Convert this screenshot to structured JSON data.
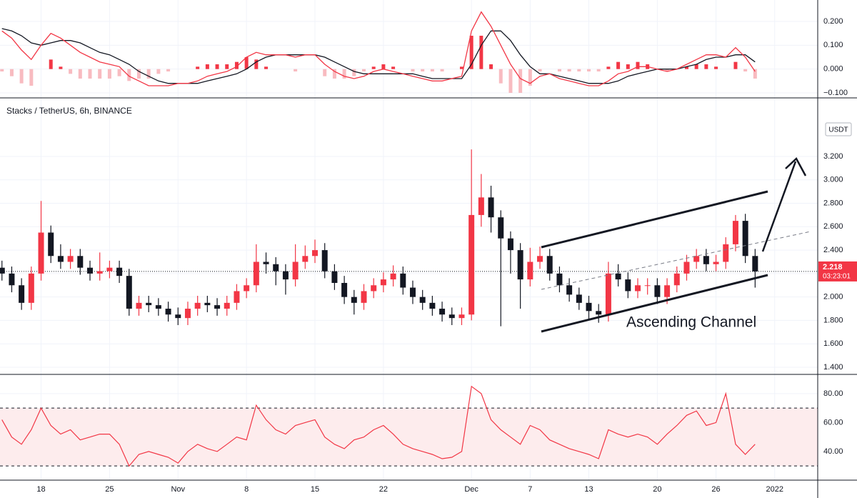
{
  "chart_data": [
    {
      "type": "macd",
      "ylim": [
        -0.121,
        0.29
      ],
      "yticks": [
        {
          "value": 0.2,
          "label": "0.200"
        },
        {
          "value": 0.1,
          "label": "0.100"
        },
        {
          "value": 0,
          "label": "0.000"
        },
        {
          "value": -0.1,
          "label": "−0.100"
        }
      ],
      "macd": {
        "color": "#f23645",
        "values": [
          0.16,
          0.13,
          0.08,
          0.04,
          0.1,
          0.15,
          0.13,
          0.1,
          0.07,
          0.05,
          0.03,
          0.02,
          0.01,
          -0.03,
          -0.05,
          -0.07,
          -0.07,
          -0.07,
          -0.06,
          -0.06,
          -0.05,
          -0.03,
          -0.02,
          -0.01,
          0.01,
          0.05,
          0.07,
          0.06,
          0.06,
          0.06,
          0.05,
          0.06,
          0.06,
          0.02,
          -0.01,
          -0.03,
          -0.04,
          -0.03,
          -0.01,
          0.0,
          -0.01,
          -0.02,
          -0.03,
          -0.04,
          -0.05,
          -0.05,
          -0.04,
          -0.03,
          0.16,
          0.24,
          0.18,
          0.1,
          0.02,
          -0.04,
          -0.06,
          -0.03,
          -0.02,
          -0.04,
          -0.05,
          -0.06,
          -0.07,
          -0.07,
          -0.05,
          -0.02,
          -0.01,
          0.01,
          0.01,
          0.0,
          -0.01,
          0.0,
          0.02,
          0.04,
          0.06,
          0.06,
          0.05,
          0.09,
          0.05,
          -0.01
        ]
      },
      "signal": {
        "color": "#131722",
        "values": [
          0.17,
          0.16,
          0.14,
          0.11,
          0.1,
          0.11,
          0.12,
          0.12,
          0.11,
          0.09,
          0.07,
          0.06,
          0.04,
          0.02,
          -0.01,
          -0.03,
          -0.05,
          -0.06,
          -0.06,
          -0.06,
          -0.06,
          -0.05,
          -0.04,
          -0.03,
          -0.02,
          0.0,
          0.03,
          0.05,
          0.06,
          0.06,
          0.06,
          0.06,
          0.06,
          0.05,
          0.03,
          0.01,
          -0.01,
          -0.02,
          -0.02,
          -0.02,
          -0.02,
          -0.02,
          -0.02,
          -0.03,
          -0.04,
          -0.04,
          -0.04,
          -0.04,
          0.02,
          0.1,
          0.16,
          0.16,
          0.12,
          0.06,
          0.01,
          -0.02,
          -0.02,
          -0.03,
          -0.04,
          -0.05,
          -0.06,
          -0.06,
          -0.06,
          -0.05,
          -0.03,
          -0.02,
          -0.01,
          0.0,
          0.0,
          0.0,
          0.01,
          0.02,
          0.04,
          0.05,
          0.05,
          0.06,
          0.06,
          0.03
        ]
      },
      "histogram": {
        "colors": [
          "#f23645",
          "#f8bbc0"
        ],
        "values": [
          -0.01,
          -0.03,
          -0.06,
          -0.07,
          0.0,
          0.04,
          0.01,
          -0.02,
          -0.04,
          -0.04,
          -0.04,
          -0.04,
          -0.03,
          -0.05,
          -0.04,
          -0.04,
          -0.02,
          -0.01,
          0.0,
          0.0,
          0.01,
          0.02,
          0.02,
          0.02,
          0.03,
          0.05,
          0.04,
          0.01,
          0.0,
          0.0,
          -0.01,
          0.0,
          0.0,
          -0.03,
          -0.04,
          -0.04,
          -0.03,
          -0.01,
          0.01,
          0.02,
          0.01,
          0.0,
          -0.01,
          -0.01,
          -0.01,
          -0.01,
          0.0,
          0.01,
          0.14,
          0.14,
          0.02,
          -0.06,
          -0.1,
          -0.1,
          -0.07,
          -0.01,
          0.0,
          -0.01,
          -0.01,
          -0.01,
          -0.01,
          -0.01,
          0.01,
          0.03,
          0.02,
          0.03,
          0.02,
          0.0,
          -0.01,
          0.0,
          0.01,
          0.02,
          0.02,
          0.01,
          0.0,
          0.03,
          -0.01,
          -0.04
        ]
      }
    },
    {
      "type": "candlestick",
      "title": "Stacks / TetherUS, 6h, BINANCE",
      "unit": "USDT",
      "annotation": "Ascending Channel",
      "last_price": 2.218,
      "countdown": "03:23:01",
      "up_color": "#f23645",
      "down_color": "#131722",
      "ylim": [
        1.339,
        3.7
      ],
      "yticks": [
        {
          "value": 1.4,
          "label": "1.400"
        },
        {
          "value": 1.6,
          "label": "1.600"
        },
        {
          "value": 1.8,
          "label": "1.800"
        },
        {
          "value": 2.0,
          "label": "2.000"
        },
        {
          "value": 2.2,
          "label": "2.200"
        },
        {
          "value": 2.4,
          "label": "2.400"
        },
        {
          "value": 2.6,
          "label": "2.600"
        },
        {
          "value": 2.8,
          "label": "2.800"
        },
        {
          "value": 3.0,
          "label": "3.000"
        },
        {
          "value": 3.2,
          "label": "3.200"
        }
      ],
      "xlim": [
        -0.2,
        83.4
      ],
      "xticks": [
        {
          "value": 4,
          "label": "18"
        },
        {
          "value": 11,
          "label": "25"
        },
        {
          "value": 18,
          "label": "Nov"
        },
        {
          "value": 25,
          "label": "8"
        },
        {
          "value": 32,
          "label": "15"
        },
        {
          "value": 39,
          "label": "22"
        },
        {
          "value": 48,
          "label": "Dec"
        },
        {
          "value": 54,
          "label": "7"
        },
        {
          "value": 60,
          "label": "13"
        },
        {
          "value": 67,
          "label": "20"
        },
        {
          "value": 73,
          "label": "26"
        },
        {
          "value": 79,
          "label": "2022"
        }
      ],
      "open": [
        2.25,
        2.2,
        2.1,
        1.95,
        2.2,
        2.55,
        2.35,
        2.3,
        2.35,
        2.25,
        2.2,
        2.22,
        2.25,
        2.18,
        1.9,
        1.95,
        1.93,
        1.9,
        1.85,
        1.82,
        1.9,
        1.95,
        1.93,
        1.9,
        1.95,
        2.05,
        2.1,
        2.3,
        2.28,
        2.22,
        2.15,
        2.3,
        2.35,
        2.4,
        2.22,
        2.12,
        2.0,
        1.95,
        2.05,
        2.1,
        2.15,
        2.2,
        2.08,
        2.0,
        1.95,
        1.9,
        1.85,
        1.82,
        1.85,
        2.7,
        2.85,
        2.68,
        2.5,
        2.4,
        2.15,
        2.3,
        2.35,
        2.2,
        2.1,
        2.02,
        1.95,
        1.88,
        1.85,
        2.2,
        2.15,
        2.05,
        2.1,
        2.1,
        2.0,
        2.1,
        2.2,
        2.3,
        2.35,
        2.28,
        2.3,
        2.45,
        2.65,
        2.35
      ],
      "high": [
        2.31,
        2.26,
        2.16,
        2.26,
        2.82,
        2.61,
        2.45,
        2.41,
        2.41,
        2.31,
        2.38,
        2.31,
        2.31,
        2.24,
        2.01,
        2.01,
        1.99,
        1.96,
        1.91,
        1.96,
        2.01,
        2.01,
        1.99,
        2.01,
        2.11,
        2.16,
        2.45,
        2.38,
        2.34,
        2.28,
        2.45,
        2.44,
        2.49,
        2.46,
        2.28,
        2.18,
        2.06,
        2.11,
        2.16,
        2.21,
        2.27,
        2.26,
        2.14,
        2.06,
        2.01,
        1.96,
        1.91,
        1.91,
        3.26,
        3.05,
        2.95,
        2.74,
        2.56,
        2.46,
        2.42,
        2.43,
        2.41,
        2.26,
        2.16,
        2.08,
        2.01,
        1.94,
        2.3,
        2.28,
        2.21,
        2.16,
        2.16,
        2.16,
        2.16,
        2.26,
        2.36,
        2.41,
        2.41,
        2.36,
        2.51,
        2.7,
        2.71,
        2.41
      ],
      "low": [
        2.14,
        2.04,
        1.89,
        1.89,
        2.14,
        2.29,
        2.24,
        2.24,
        2.19,
        2.14,
        2.14,
        2.16,
        2.12,
        1.84,
        1.84,
        1.87,
        1.84,
        1.79,
        1.76,
        1.76,
        1.84,
        1.87,
        1.84,
        1.84,
        1.89,
        1.99,
        2.04,
        2.2,
        2.1,
        2.02,
        2.09,
        2.24,
        2.29,
        2.16,
        2.06,
        1.94,
        1.85,
        1.89,
        1.99,
        2.04,
        2.09,
        2.02,
        1.94,
        1.89,
        1.84,
        1.79,
        1.76,
        1.76,
        1.8,
        2.6,
        2.55,
        1.75,
        2.2,
        1.9,
        2.09,
        2.24,
        2.14,
        2.04,
        1.96,
        1.89,
        1.8,
        1.78,
        1.79,
        2.09,
        1.99,
        1.99,
        2.02,
        1.94,
        1.94,
        2.04,
        2.14,
        2.24,
        2.22,
        2.22,
        2.24,
        2.39,
        2.29,
        2.08
      ],
      "close": [
        2.2,
        2.1,
        1.95,
        2.2,
        2.55,
        2.35,
        2.3,
        2.35,
        2.25,
        2.2,
        2.22,
        2.25,
        2.18,
        1.9,
        1.95,
        1.93,
        1.9,
        1.85,
        1.82,
        1.9,
        1.95,
        1.93,
        1.9,
        1.95,
        2.05,
        2.1,
        2.3,
        2.28,
        2.22,
        2.15,
        2.3,
        2.35,
        2.4,
        2.22,
        2.12,
        2.0,
        1.95,
        2.05,
        2.1,
        2.15,
        2.2,
        2.08,
        2.0,
        1.95,
        1.9,
        1.85,
        1.82,
        1.85,
        2.7,
        2.85,
        2.68,
        2.5,
        2.4,
        2.15,
        2.3,
        2.35,
        2.2,
        2.1,
        2.02,
        1.95,
        1.88,
        1.85,
        2.2,
        2.15,
        2.05,
        2.1,
        2.1,
        2.0,
        2.1,
        2.2,
        2.3,
        2.35,
        2.28,
        2.3,
        2.45,
        2.65,
        2.35,
        2.218
      ]
    },
    {
      "type": "rsi",
      "ylim": [
        20.2,
        93.3
      ],
      "yticks": [
        {
          "value": 40,
          "label": "40.00"
        },
        {
          "value": 60,
          "label": "60.00"
        },
        {
          "value": 80,
          "label": "80.00"
        }
      ],
      "bands": [
        30,
        70
      ],
      "band_color": "#fdeced",
      "color": "#f23645",
      "values": [
        62,
        50,
        45,
        55,
        70,
        58,
        52,
        55,
        48,
        50,
        52,
        52,
        45,
        30,
        38,
        40,
        38,
        36,
        32,
        40,
        45,
        42,
        40,
        45,
        50,
        48,
        72,
        62,
        55,
        52,
        58,
        60,
        62,
        50,
        45,
        42,
        48,
        50,
        55,
        58,
        52,
        45,
        42,
        40,
        38,
        35,
        36,
        40,
        85,
        80,
        62,
        55,
        50,
        45,
        58,
        55,
        48,
        45,
        42,
        40,
        38,
        35,
        55,
        52,
        50,
        52,
        50,
        45,
        52,
        58,
        65,
        68,
        58,
        60,
        80,
        45,
        38,
        45
      ]
    }
  ]
}
